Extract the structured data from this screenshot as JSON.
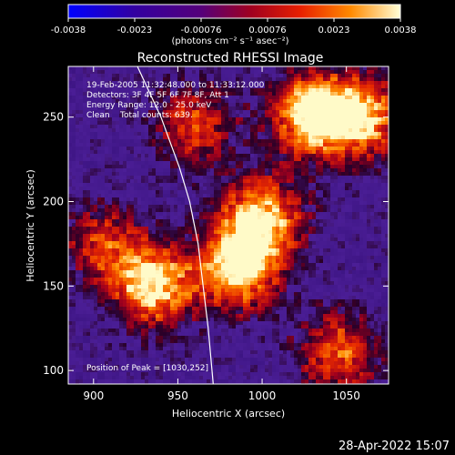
{
  "chart_data": {
    "type": "heatmap",
    "title": "Reconstructed RHESSI Image",
    "xlabel": "Heliocentric X (arcsec)",
    "ylabel": "Heliocentric Y (arcsec)",
    "xlim": [
      885,
      1075
    ],
    "ylim": [
      92,
      280
    ],
    "xticks": [
      900,
      950,
      1000,
      1050
    ],
    "yticks": [
      100,
      150,
      200,
      250
    ],
    "colorbar": {
      "ticks": [
        "-0.0038",
        "-0.0023",
        "-0.00076",
        "0.00076",
        "0.0023",
        "0.0038"
      ],
      "range": [
        -0.0038,
        0.0038
      ],
      "units_label": "(photons cm⁻² s⁻¹ asec⁻²)"
    },
    "annotations": [
      "19-Feb-2005 11:32:48.000 to 11:33:12.000",
      "Detectors: 3F 4F 5F 6F 7F 8F, Att 1",
      "Energy Range: 12.0 - 25.0 keV",
      "Clean    Total counts: 639."
    ],
    "peak_label": "Position of Peak = [1030,252]",
    "peak_position": [
      1030,
      252
    ],
    "limb_curve": [
      [
        926,
        280
      ],
      [
        940,
        250
      ],
      [
        951,
        220
      ],
      [
        957,
        200
      ],
      [
        962,
        175
      ],
      [
        965,
        150
      ],
      [
        968,
        125
      ],
      [
        971,
        92
      ]
    ],
    "sources": [
      {
        "x": 935,
        "y": 150,
        "value": 0.0035
      },
      {
        "x": 985,
        "y": 160,
        "value": 0.0036
      },
      {
        "x": 1000,
        "y": 190,
        "value": 0.0034
      },
      {
        "x": 1030,
        "y": 252,
        "value": 0.0038
      },
      {
        "x": 1060,
        "y": 250,
        "value": 0.003
      },
      {
        "x": 1045,
        "y": 110,
        "value": 0.0025
      },
      {
        "x": 960,
        "y": 245,
        "value": 0.0022
      },
      {
        "x": 905,
        "y": 175,
        "value": 0.002
      }
    ]
  },
  "footer": {
    "timestamp": "28-Apr-2022 15:07"
  }
}
